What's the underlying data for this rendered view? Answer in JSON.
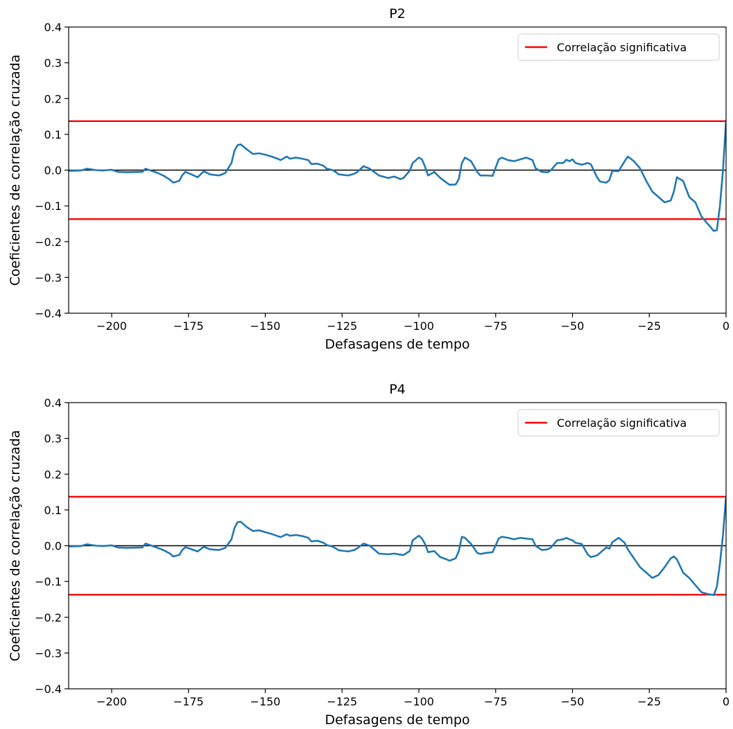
{
  "chart_data": [
    {
      "type": "line",
      "title": "P2",
      "xlabel": "Defasagens de tempo",
      "ylabel": "Coeficientes de correlação cruzada",
      "xlim": [
        -214,
        0
      ],
      "ylim": [
        -0.4,
        0.4
      ],
      "xticks": [
        -200,
        -175,
        -150,
        -125,
        -100,
        -75,
        -50,
        -25,
        0
      ],
      "xtick_labels": [
        "−200",
        "−175",
        "−150",
        "−125",
        "−100",
        "−75",
        "−50",
        "−25",
        "0"
      ],
      "yticks": [
        -0.4,
        -0.3,
        -0.2,
        -0.1,
        0.0,
        0.1,
        0.2,
        0.3,
        0.4
      ],
      "ytick_labels": [
        "−0.4",
        "−0.3",
        "−0.2",
        "−0.1",
        "0.0",
        "0.1",
        "0.2",
        "0.3",
        "0.4"
      ],
      "legend": {
        "location": "top-right",
        "entries": [
          {
            "label": "Correlação significativa",
            "color": "#ff0000"
          }
        ]
      },
      "significance_levels": [
        0.137,
        -0.137
      ],
      "zero_line": 0,
      "series": [
        {
          "color": "#1f77b4",
          "x": [
            -214,
            -210,
            -208,
            -205,
            -203,
            -200,
            -198,
            -195,
            -190,
            -189,
            -185,
            -183,
            -181,
            -180,
            -178,
            -177,
            -176,
            -174,
            -172,
            -170,
            -168,
            -165,
            -163,
            -161,
            -160,
            -159,
            -158,
            -156,
            -154,
            -152,
            -150,
            -148,
            -146,
            -145,
            -143,
            -142,
            -140,
            -138,
            -136,
            -135,
            -133,
            -131,
            -130,
            -128,
            -126,
            -123,
            -121,
            -120,
            -118,
            -116,
            -113,
            -110,
            -108,
            -106,
            -105,
            -103,
            -102,
            -100,
            -99,
            -98,
            -97,
            -95,
            -93,
            -91,
            -90,
            -88,
            -87,
            -86,
            -85,
            -83,
            -81,
            -80,
            -78,
            -76,
            -74,
            -73,
            -71,
            -69,
            -67,
            -65,
            -63,
            -62,
            -60,
            -58,
            -57,
            -55,
            -53,
            -52,
            -51,
            -50,
            -49,
            -47,
            -45,
            -44,
            -42,
            -41,
            -39,
            -38,
            -37,
            -35,
            -33,
            -32,
            -30,
            -28,
            -26,
            -24,
            -22,
            -20,
            -18,
            -17,
            -16,
            -14,
            -12,
            -10,
            -8,
            -6,
            -4,
            -3,
            -2,
            -1,
            0
          ],
          "values": [
            -0.002,
            -0.001,
            0.004,
            0.0,
            -0.001,
            0.001,
            -0.005,
            -0.006,
            -0.005,
            0.004,
            -0.008,
            -0.016,
            -0.027,
            -0.035,
            -0.03,
            -0.014,
            -0.005,
            -0.012,
            -0.02,
            -0.003,
            -0.012,
            -0.015,
            -0.008,
            0.02,
            0.055,
            0.07,
            0.072,
            0.058,
            0.045,
            0.047,
            0.043,
            0.038,
            0.032,
            0.028,
            0.038,
            0.032,
            0.035,
            0.032,
            0.028,
            0.017,
            0.018,
            0.012,
            0.004,
            0.0,
            -0.012,
            -0.015,
            -0.01,
            -0.005,
            0.011,
            0.004,
            -0.015,
            -0.022,
            -0.018,
            -0.025,
            -0.022,
            -0.002,
            0.02,
            0.035,
            0.03,
            0.01,
            -0.015,
            -0.005,
            -0.022,
            -0.035,
            -0.041,
            -0.04,
            -0.025,
            0.02,
            0.035,
            0.025,
            -0.005,
            -0.015,
            -0.015,
            -0.016,
            0.03,
            0.035,
            0.028,
            0.025,
            0.03,
            0.035,
            0.028,
            0.005,
            -0.005,
            -0.006,
            0.0,
            0.02,
            0.02,
            0.029,
            0.025,
            0.03,
            0.02,
            0.015,
            0.02,
            0.016,
            -0.02,
            -0.032,
            -0.035,
            -0.028,
            -0.002,
            -0.003,
            0.025,
            0.038,
            0.025,
            0.005,
            -0.03,
            -0.06,
            -0.075,
            -0.09,
            -0.085,
            -0.06,
            -0.02,
            -0.03,
            -0.075,
            -0.09,
            -0.13,
            -0.15,
            -0.17,
            -0.168,
            -0.1,
            0.0,
            0.14
          ]
        }
      ]
    },
    {
      "type": "line",
      "title": "P4",
      "xlabel": "Defasagens de tempo",
      "ylabel": "Coeficientes de correlação cruzada",
      "xlim": [
        -214,
        0
      ],
      "ylim": [
        -0.4,
        0.4
      ],
      "xticks": [
        -200,
        -175,
        -150,
        -125,
        -100,
        -75,
        -50,
        -25,
        0
      ],
      "xtick_labels": [
        "−200",
        "−175",
        "−150",
        "−125",
        "−100",
        "−75",
        "−50",
        "−25",
        "0"
      ],
      "yticks": [
        -0.4,
        -0.3,
        -0.2,
        -0.1,
        0.0,
        0.1,
        0.2,
        0.3,
        0.4
      ],
      "ytick_labels": [
        "−0.4",
        "−0.3",
        "−0.2",
        "−0.1",
        "0.0",
        "0.1",
        "0.2",
        "0.3",
        "0.4"
      ],
      "legend": {
        "location": "top-right",
        "entries": [
          {
            "label": "Correlação significativa",
            "color": "#ff0000"
          }
        ]
      },
      "significance_levels": [
        0.137,
        -0.137
      ],
      "zero_line": 0,
      "series": [
        {
          "color": "#1f77b4",
          "x": [
            -214,
            -210,
            -208,
            -205,
            -203,
            -200,
            -198,
            -195,
            -190,
            -189,
            -185,
            -183,
            -181,
            -180,
            -178,
            -177,
            -176,
            -174,
            -172,
            -170,
            -168,
            -165,
            -163,
            -161,
            -160,
            -159,
            -158,
            -156,
            -154,
            -152,
            -150,
            -148,
            -146,
            -145,
            -143,
            -142,
            -140,
            -138,
            -136,
            -135,
            -133,
            -131,
            -130,
            -128,
            -126,
            -123,
            -121,
            -120,
            -118,
            -116,
            -113,
            -110,
            -108,
            -106,
            -105,
            -103,
            -102,
            -100,
            -99,
            -98,
            -97,
            -95,
            -93,
            -91,
            -90,
            -88,
            -87,
            -86,
            -85,
            -83,
            -81,
            -80,
            -78,
            -76,
            -74,
            -73,
            -71,
            -69,
            -67,
            -65,
            -63,
            -62,
            -60,
            -58,
            -57,
            -55,
            -53,
            -52,
            -51,
            -50,
            -49,
            -47,
            -45,
            -44,
            -42,
            -41,
            -39,
            -38,
            -37,
            -35,
            -33,
            -32,
            -30,
            -28,
            -26,
            -24,
            -22,
            -20,
            -18,
            -17,
            -16,
            -14,
            -12,
            -10,
            -8,
            -6,
            -4,
            -3,
            -2,
            -1,
            0
          ],
          "values": [
            -0.002,
            -0.001,
            0.004,
            0.0,
            -0.001,
            0.001,
            -0.005,
            -0.006,
            -0.005,
            0.006,
            -0.006,
            -0.013,
            -0.022,
            -0.03,
            -0.026,
            -0.012,
            -0.004,
            -0.01,
            -0.016,
            -0.003,
            -0.01,
            -0.012,
            -0.006,
            0.018,
            0.05,
            0.066,
            0.067,
            0.052,
            0.041,
            0.043,
            0.038,
            0.033,
            0.027,
            0.024,
            0.032,
            0.028,
            0.03,
            0.027,
            0.022,
            0.012,
            0.014,
            0.008,
            0.002,
            -0.003,
            -0.013,
            -0.016,
            -0.012,
            -0.007,
            0.006,
            0.0,
            -0.022,
            -0.024,
            -0.022,
            -0.025,
            -0.026,
            -0.015,
            0.015,
            0.028,
            0.02,
            0.005,
            -0.018,
            -0.015,
            -0.032,
            -0.038,
            -0.042,
            -0.035,
            -0.015,
            0.025,
            0.022,
            0.005,
            -0.02,
            -0.023,
            -0.02,
            -0.018,
            0.02,
            0.025,
            0.022,
            0.018,
            0.022,
            0.02,
            0.018,
            0.0,
            -0.012,
            -0.01,
            -0.005,
            0.015,
            0.018,
            0.022,
            0.018,
            0.015,
            0.008,
            0.005,
            -0.025,
            -0.032,
            -0.027,
            -0.02,
            -0.005,
            -0.008,
            0.01,
            0.022,
            0.008,
            -0.01,
            -0.035,
            -0.06,
            -0.075,
            -0.09,
            -0.082,
            -0.06,
            -0.035,
            -0.03,
            -0.038,
            -0.075,
            -0.09,
            -0.11,
            -0.13,
            -0.135,
            -0.138,
            -0.115,
            -0.05,
            0.03,
            0.14
          ]
        }
      ]
    }
  ]
}
